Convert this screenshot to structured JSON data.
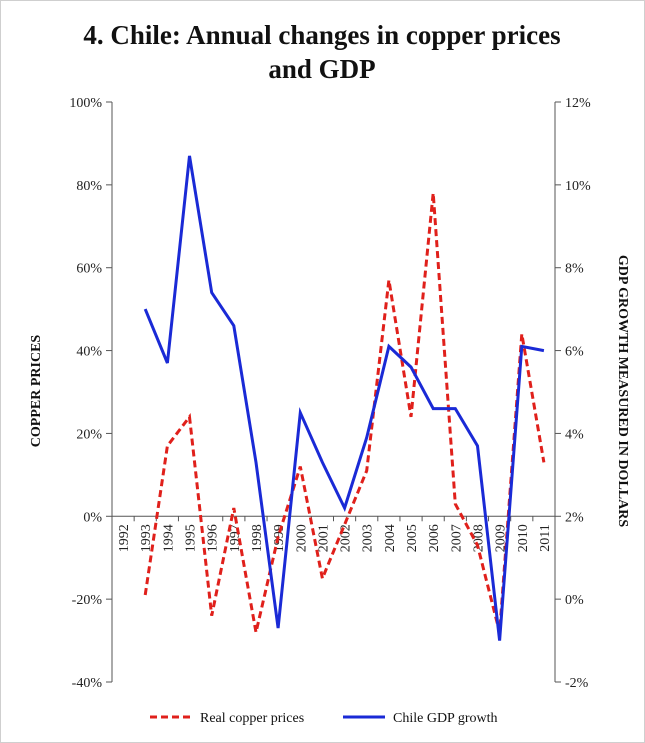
{
  "chart_data": {
    "type": "line",
    "title_lines": [
      "4. Chile: Annual changes in copper prices",
      "and GDP"
    ],
    "ylabel_left": "COPPER PRICES",
    "ylabel_right": "GDP GROWTH MEASURED IN DOLLARS",
    "categories": [
      "1992",
      "1993",
      "1994",
      "1995",
      "1996",
      "1997",
      "1998",
      "1999",
      "2000",
      "2001",
      "2002",
      "2003",
      "2004",
      "2005",
      "2006",
      "2007",
      "2008",
      "2009",
      "2010",
      "2011"
    ],
    "left_axis": {
      "min": -40,
      "max": 100,
      "step": 20,
      "unit": "%"
    },
    "right_axis": {
      "min": -2,
      "max": 12,
      "step": 2,
      "unit": "%"
    },
    "series": [
      {
        "name": "Real copper prices",
        "axis": "left",
        "style": "dashed",
        "color": "#e0201b",
        "values": [
          null,
          -19,
          17,
          24,
          -24,
          2,
          -28,
          -5,
          12,
          -15,
          -2,
          11,
          57,
          24,
          78,
          3,
          -7,
          -28,
          44,
          13
        ]
      },
      {
        "name": "Chile GDP growth",
        "axis": "right",
        "style": "solid",
        "color": "#1a2ad6",
        "values": [
          null,
          7.0,
          5.7,
          10.7,
          7.4,
          6.6,
          3.3,
          -0.7,
          4.5,
          3.3,
          2.2,
          3.9,
          6.1,
          5.6,
          4.6,
          4.6,
          3.7,
          -1.0,
          6.1,
          6.0
        ]
      }
    ],
    "legend_position": "bottom",
    "grid": false
  }
}
